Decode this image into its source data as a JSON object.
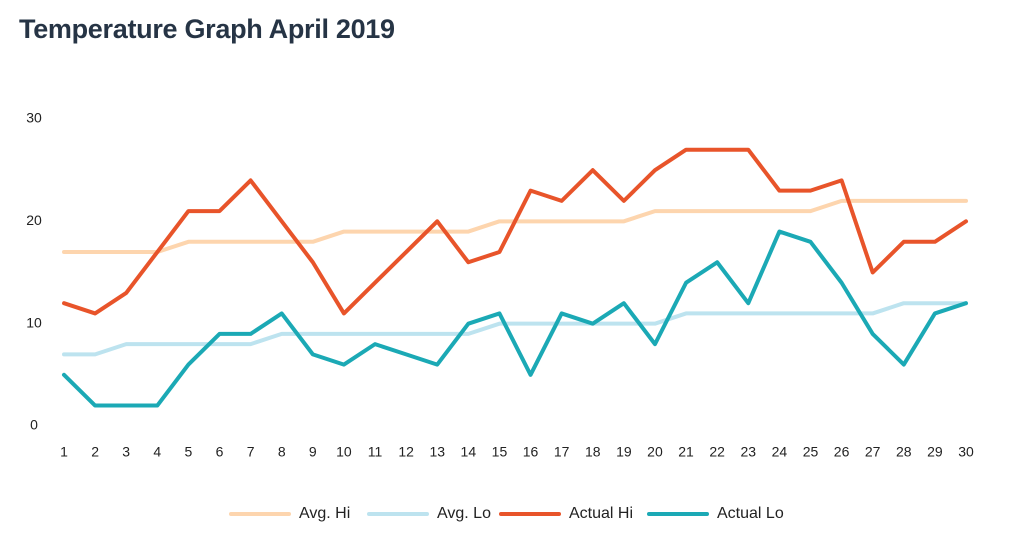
{
  "chart_data": {
    "type": "line",
    "title": "Temperature Graph April 2019",
    "xlabel": "",
    "ylabel": "",
    "categories": [
      "1",
      "2",
      "3",
      "4",
      "5",
      "6",
      "7",
      "8",
      "9",
      "10",
      "11",
      "12",
      "13",
      "14",
      "15",
      "16",
      "17",
      "18",
      "19",
      "20",
      "21",
      "22",
      "23",
      "24",
      "25",
      "26",
      "27",
      "28",
      "29",
      "30"
    ],
    "yticks": [
      "0",
      "10",
      "20",
      "30"
    ],
    "ylim": [
      0,
      30
    ],
    "grid": false,
    "legend_position": "bottom-center",
    "series": [
      {
        "name": "Avg. Hi",
        "color": "#FDD5AE",
        "values": [
          17,
          17,
          17,
          17,
          18,
          18,
          18,
          18,
          18,
          19,
          19,
          19,
          19,
          19,
          20,
          20,
          20,
          20,
          20,
          21,
          21,
          21,
          21,
          21,
          21,
          22,
          22,
          22,
          22,
          22
        ]
      },
      {
        "name": "Avg. Lo",
        "color": "#BDE3EF",
        "values": [
          7,
          7,
          8,
          8,
          8,
          8,
          8,
          9,
          9,
          9,
          9,
          9,
          9,
          9,
          10,
          10,
          10,
          10,
          10,
          10,
          11,
          11,
          11,
          11,
          11,
          11,
          11,
          12,
          12,
          12
        ]
      },
      {
        "name": "Actual Hi",
        "color": "#E8542A",
        "values": [
          12,
          11,
          13,
          17,
          21,
          21,
          24,
          20,
          16,
          11,
          14,
          17,
          20,
          16,
          17,
          23,
          22,
          25,
          22,
          25,
          27,
          27,
          27,
          23,
          23,
          24,
          15,
          18,
          18,
          20
        ]
      },
      {
        "name": "Actual Lo",
        "color": "#1BA9B5",
        "values": [
          5,
          2,
          2,
          2,
          6,
          9,
          9,
          11,
          7,
          6,
          8,
          7,
          6,
          10,
          11,
          5,
          11,
          10,
          12,
          8,
          14,
          16,
          12,
          19,
          18,
          14,
          9,
          6,
          11,
          12
        ]
      }
    ]
  }
}
